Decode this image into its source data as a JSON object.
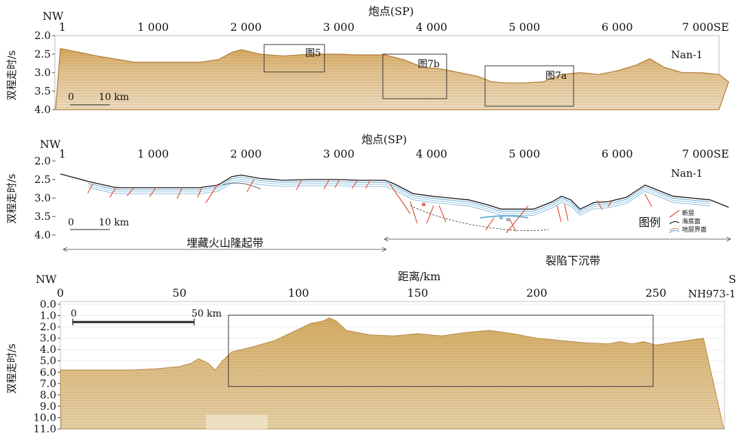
{
  "chart_data": [
    {
      "type": "other",
      "profile": "Nan-1",
      "xlabel": "炮点(SP)",
      "x_left_label": "NW",
      "x_right_label": "SE",
      "x_ticks": [
        "1",
        "1 000",
        "2 000",
        "3 000",
        "4 000",
        "5 000",
        "6 000",
        "7 000"
      ],
      "ylabel": "双程走时/s",
      "y_ticks": [
        "2.0",
        "2.5",
        "3.0",
        "3.5",
        "4.0"
      ],
      "scale_bar": {
        "zero": "0",
        "value": "10 km"
      },
      "boxes": [
        "图5",
        "图7b",
        "图7a"
      ],
      "seafloor_profile": {
        "x": [
          1,
          400,
          800,
          1200,
          1500,
          1700,
          1850,
          1950,
          2150,
          2400,
          2700,
          3000,
          3200,
          3500,
          3700,
          3900,
          4100,
          4300,
          4500,
          4650,
          4800,
          5000,
          5200,
          5400,
          5600,
          5800,
          6000,
          6200,
          6350,
          6500,
          6700,
          6900,
          7100,
          7200
        ],
        "y": [
          2.35,
          2.55,
          2.72,
          2.72,
          2.72,
          2.65,
          2.45,
          2.38,
          2.5,
          2.55,
          2.5,
          2.5,
          2.52,
          2.52,
          2.65,
          2.85,
          2.9,
          3.0,
          3.1,
          3.25,
          3.28,
          3.28,
          3.25,
          3.05,
          3.0,
          3.05,
          2.95,
          2.8,
          2.62,
          2.85,
          3.0,
          3.0,
          3.05,
          3.25
        ]
      }
    },
    {
      "type": "other",
      "profile": "Nan-1",
      "xlabel": "炮点(SP)",
      "x_left_label": "NW",
      "x_right_label": "SE",
      "x_ticks": [
        "1",
        "1 000",
        "2 000",
        "3 000",
        "4 000",
        "5 000",
        "6 000",
        "7 000"
      ],
      "ylabel": "双程走时/s",
      "y_ticks": [
        "2.0",
        "2.5",
        "3.0",
        "3.5",
        "4.0"
      ],
      "scale_bar": {
        "zero": "0",
        "value": "10 km"
      },
      "legend": {
        "title": "图例",
        "items": [
          "断层",
          "海底面",
          "地层界面"
        ],
        "colors": {
          "fault": "#e0503a",
          "seafloor": "#111111",
          "strata": "#6aaed6"
        }
      },
      "zones": [
        "埋藏火山隆起带",
        "裂陷下沉带"
      ],
      "seafloor_profile": {
        "x": [
          1,
          300,
          600,
          900,
          1200,
          1500,
          1700,
          1850,
          1950,
          2150,
          2400,
          2700,
          3000,
          3200,
          3500,
          3600,
          3800,
          4000,
          4200,
          4400,
          4600,
          4750,
          4900,
          5100,
          5300,
          5400,
          5500,
          5600,
          5750,
          5900,
          6100,
          6300,
          6400,
          6600,
          6800,
          7000,
          7200
        ],
        "y": [
          2.35,
          2.55,
          2.72,
          2.72,
          2.72,
          2.72,
          2.65,
          2.42,
          2.38,
          2.47,
          2.52,
          2.5,
          2.5,
          2.52,
          2.52,
          2.62,
          2.88,
          2.95,
          3.0,
          3.05,
          3.18,
          3.3,
          3.3,
          3.3,
          3.1,
          2.95,
          3.05,
          3.3,
          3.12,
          3.1,
          2.98,
          2.65,
          2.75,
          2.95,
          3.0,
          3.05,
          3.25
        ]
      }
    },
    {
      "type": "other",
      "profile": "NH973-1",
      "xlabel": "距离/km",
      "x_left_label": "NW",
      "x_right_label": "S",
      "x_ticks": [
        "0",
        "50",
        "100",
        "150",
        "200",
        "250"
      ],
      "ylabel": "双程走时/s",
      "y_ticks": [
        "0.0",
        "1.0",
        "2.0",
        "3.0",
        "4.0",
        "5.0",
        "6.0",
        "7.0",
        "8.0",
        "9.0",
        "10.0",
        "11.0"
      ],
      "scale_bar": {
        "zero": "0",
        "value": "50 km"
      },
      "seafloor_profile": {
        "x": [
          0,
          10,
          20,
          30,
          40,
          50,
          55,
          58,
          62,
          65,
          68,
          72,
          80,
          90,
          100,
          105,
          110,
          113,
          116,
          120,
          130,
          140,
          150,
          160,
          170,
          180,
          190,
          200,
          210,
          220,
          230,
          235,
          240,
          245,
          250,
          260,
          270
        ],
        "y": [
          5.8,
          5.8,
          5.8,
          5.8,
          5.7,
          5.5,
          5.2,
          4.8,
          5.2,
          5.8,
          5.0,
          4.2,
          3.8,
          3.2,
          2.2,
          1.7,
          1.5,
          1.2,
          1.5,
          2.3,
          2.7,
          2.8,
          2.6,
          2.8,
          2.5,
          2.3,
          2.6,
          3.0,
          3.2,
          3.4,
          3.5,
          3.3,
          3.5,
          3.3,
          3.6,
          3.3,
          3.0
        ]
      }
    }
  ]
}
